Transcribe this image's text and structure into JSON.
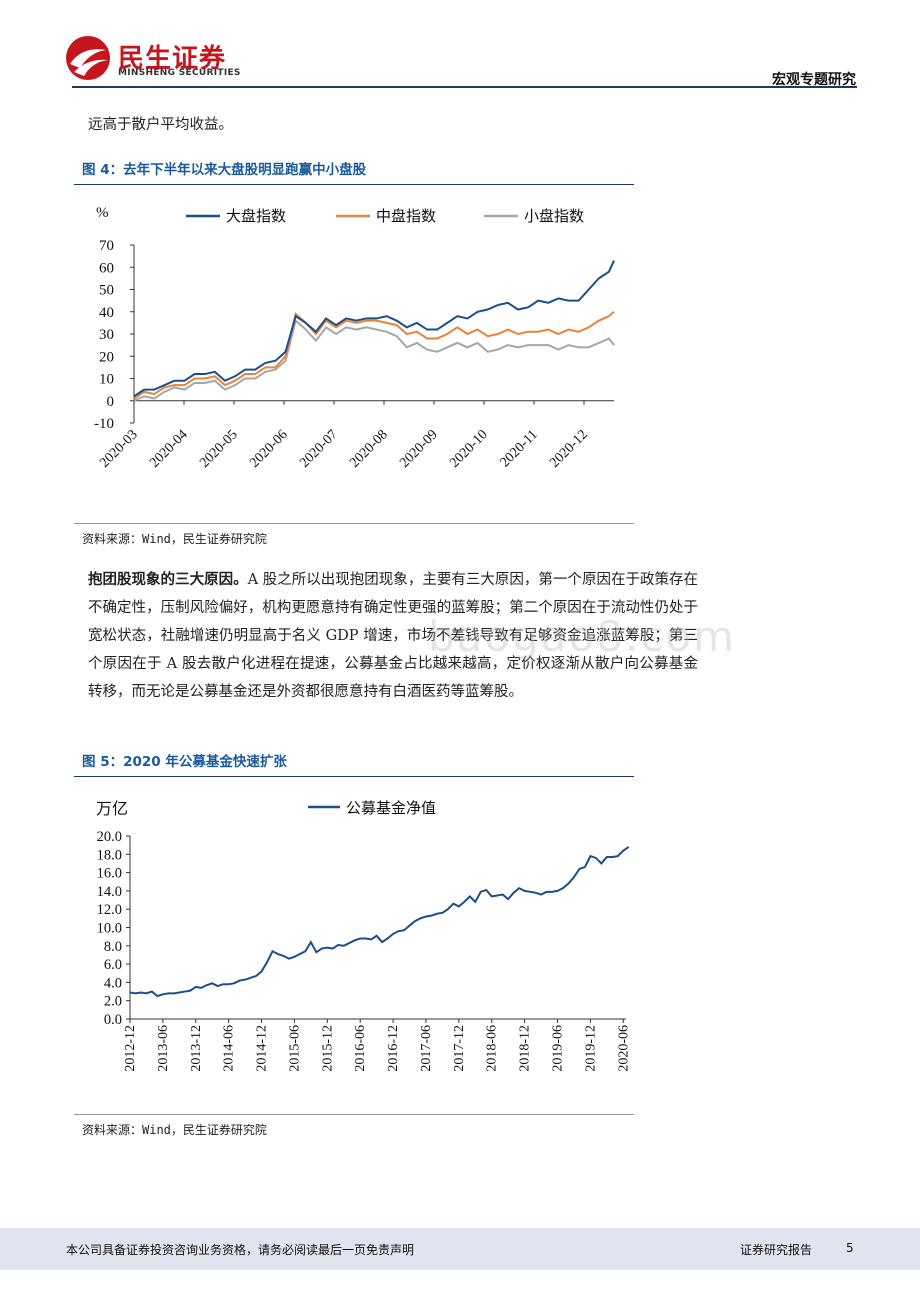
{
  "header": {
    "brand_cn": "民生证券",
    "brand_en": "MINSHENG SECURITIES",
    "report_type": "宏观专题研究"
  },
  "intro_text": "远高于散户平均收益。",
  "figure4": {
    "title": "图 4：去年下半年以来大盘股明显跑赢中小盘股",
    "source": "资料来源：Wind，民生证券研究院",
    "chart_data": {
      "type": "line",
      "title": "",
      "ylabel": "%",
      "xlabel": "",
      "ylim": [
        -10,
        70
      ],
      "yticks": [
        -10,
        0,
        10,
        20,
        30,
        40,
        50,
        60,
        70
      ],
      "legend": "top",
      "grid": false,
      "x_ticks": [
        "2020-03",
        "2020-04",
        "2020-05",
        "2020-06",
        "2020-07",
        "2020-08",
        "2020-09",
        "2020-10",
        "2020-11",
        "2020-12"
      ],
      "x": [
        0,
        0.2,
        0.4,
        0.6,
        0.8,
        1.0,
        1.2,
        1.4,
        1.6,
        1.8,
        2.0,
        2.2,
        2.4,
        2.6,
        2.8,
        3.0,
        3.2,
        3.4,
        3.6,
        3.8,
        4.0,
        4.2,
        4.4,
        4.6,
        4.8,
        5.0,
        5.2,
        5.4,
        5.6,
        5.8,
        6.0,
        6.2,
        6.4,
        6.6,
        6.8,
        7.0,
        7.2,
        7.4,
        7.6,
        7.8,
        8.0,
        8.2,
        8.4,
        8.6,
        8.8,
        9.0,
        9.2,
        9.4,
        9.5
      ],
      "series": [
        {
          "name": "大盘指数",
          "color": "#1a4f8a",
          "values": [
            2,
            5,
            5,
            7,
            9,
            9,
            12,
            12,
            13,
            9,
            11,
            14,
            14,
            17,
            18,
            22,
            38,
            35,
            31,
            37,
            34,
            37,
            36,
            37,
            37,
            38,
            36,
            33,
            35,
            32,
            32,
            35,
            38,
            37,
            40,
            41,
            43,
            44,
            41,
            42,
            45,
            44,
            46,
            45,
            45,
            50,
            55,
            58,
            63
          ]
        },
        {
          "name": "中盘指数",
          "color": "#e8833a",
          "values": [
            1,
            4,
            3,
            6,
            7,
            7,
            10,
            10,
            11,
            7,
            9,
            12,
            12,
            15,
            15,
            20,
            39,
            35,
            30,
            36,
            33,
            36,
            35,
            36,
            36,
            35,
            34,
            30,
            31,
            28,
            28,
            30,
            33,
            30,
            32,
            29,
            30,
            32,
            30,
            31,
            31,
            32,
            30,
            32,
            31,
            33,
            36,
            38,
            40
          ]
        },
        {
          "name": "小盘指数",
          "color": "#a6a6a6",
          "values": [
            0,
            2,
            1,
            4,
            6,
            5,
            8,
            8,
            9,
            5,
            7,
            10,
            10,
            13,
            14,
            18,
            36,
            32,
            27,
            33,
            30,
            33,
            32,
            33,
            32,
            31,
            29,
            24,
            26,
            23,
            22,
            24,
            26,
            24,
            26,
            22,
            23,
            25,
            24,
            25,
            25,
            25,
            23,
            25,
            24,
            24,
            26,
            28,
            25
          ]
        }
      ]
    }
  },
  "paragraph": {
    "lead": "抱团股现象的三大原因。",
    "rest": "A 股之所以出现抱团现象，主要有三大原因，第一个原因在于政策存在不确定性，压制风险偏好，机构更愿意持有确定性更强的蓝筹股；第二个原因在于流动性仍处于宽松状态，社融增速仍明显高于名义 GDP 增速，市场不差钱导致有足够资金追涨蓝筹股；第三个原因在于 A 股去散户化进程在提速，公募基金占比越来越高，定价权逐渐从散户向公募基金转移，而无论是公募基金还是外资都很愿意持有白酒医药等蓝筹股。"
  },
  "watermark": "baogao8.com",
  "figure5": {
    "title": "图 5：2020 年公募基金快速扩张",
    "source": "资料来源：Wind，民生证券研究院",
    "chart_data": {
      "type": "line",
      "title": "",
      "ylabel": "万亿",
      "xlabel": "",
      "ylim": [
        0,
        20
      ],
      "yticks": [
        "0.0",
        "2.0",
        "4.0",
        "6.0",
        "8.0",
        "10.0",
        "12.0",
        "14.0",
        "16.0",
        "18.0",
        "20.0"
      ],
      "legend": "top",
      "grid": false,
      "x_ticks": [
        "2012-12",
        "2013-06",
        "2013-12",
        "2014-06",
        "2014-12",
        "2015-06",
        "2015-12",
        "2016-06",
        "2016-12",
        "2017-06",
        "2017-12",
        "2018-06",
        "2018-12",
        "2019-06",
        "2019-12",
        "2020-06"
      ],
      "series": [
        {
          "name": "公募基金净值",
          "color": "#1a4f8a",
          "values": [
            2.9,
            2.8,
            2.9,
            2.8,
            3.0,
            2.5,
            2.7,
            2.8,
            2.8,
            2.9,
            3.0,
            3.1,
            3.5,
            3.4,
            3.7,
            3.9,
            3.6,
            3.8,
            3.8,
            3.9,
            4.2,
            4.3,
            4.5,
            4.7,
            5.2,
            6.2,
            7.4,
            7.1,
            6.9,
            6.6,
            6.8,
            7.1,
            7.4,
            8.4,
            7.3,
            7.7,
            7.8,
            7.7,
            8.1,
            8.0,
            8.3,
            8.6,
            8.8,
            8.8,
            8.7,
            9.1,
            8.4,
            8.8,
            9.3,
            9.6,
            9.7,
            10.2,
            10.7,
            11.0,
            11.2,
            11.3,
            11.5,
            11.6,
            12.0,
            12.6,
            12.3,
            12.8,
            13.4,
            12.8,
            13.9,
            14.1,
            13.4,
            13.5,
            13.6,
            13.1,
            13.8,
            14.3,
            14.0,
            13.9,
            13.8,
            13.6,
            13.9,
            13.9,
            14.0,
            14.3,
            14.8,
            15.5,
            16.4,
            16.6,
            17.8,
            17.6,
            17.0,
            17.7,
            17.7,
            17.8,
            18.4,
            18.8
          ]
        }
      ]
    }
  },
  "footer": {
    "disclaimer": "本公司具备证券投资咨询业务资格，请务必阅读最后一页免责声明",
    "report_label": "证券研究报告",
    "page": "5"
  }
}
